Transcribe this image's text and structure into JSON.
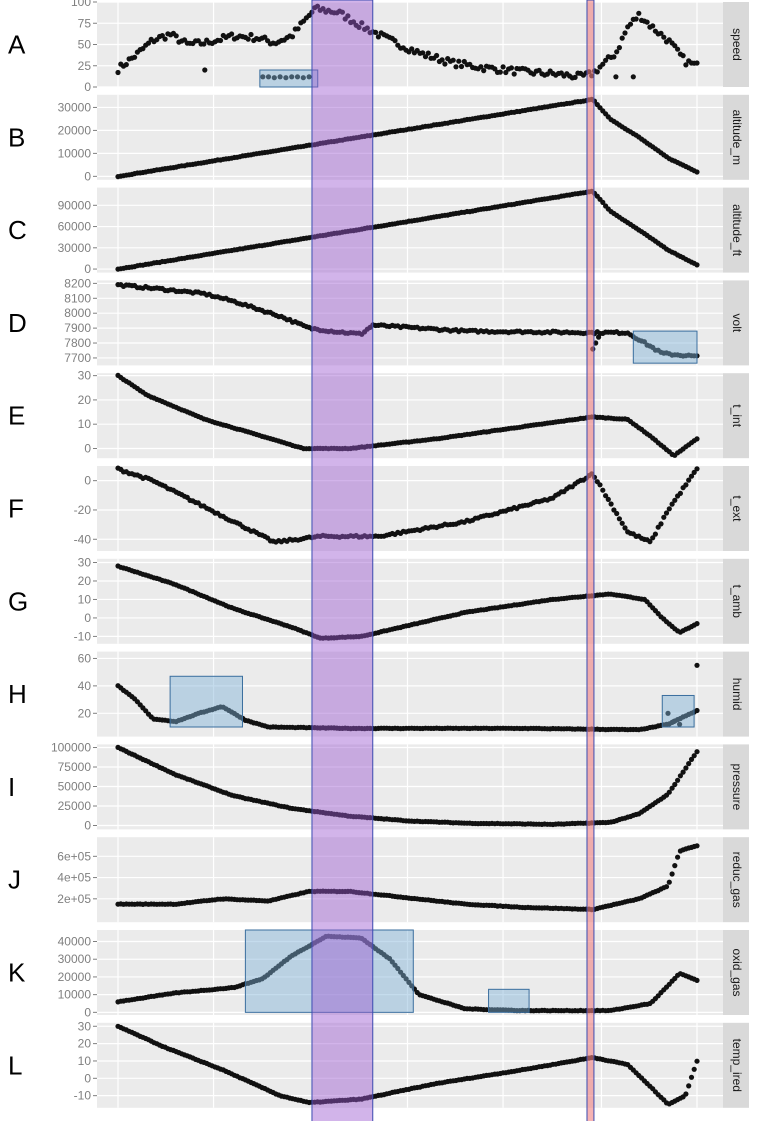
{
  "chart_data": {
    "type": "scatter",
    "x_ticks_visible": false,
    "grid": true,
    "theme": {
      "panel_bg": "#ebebeb",
      "strip_bg": "#d9d9d9",
      "point_color": "#111111"
    },
    "highlights": [
      {
        "kind": "band",
        "x_range": [
          0.335,
          0.44
        ],
        "color": "#9b59d0"
      },
      {
        "kind": "line",
        "x_range": [
          0.81,
          0.822
        ],
        "color": "#f08080"
      }
    ],
    "panels": [
      {
        "letter": "A",
        "strip": "speed",
        "ylim": [
          0,
          100
        ],
        "yticks": [
          0,
          25,
          50,
          75,
          100
        ],
        "ytick_labels": [
          "0",
          "25",
          "50",
          "75",
          "100"
        ],
        "y_keys": [
          [
            0.0,
            21
          ],
          [
            0.03,
            37
          ],
          [
            0.06,
            55
          ],
          [
            0.09,
            62
          ],
          [
            0.12,
            50
          ],
          [
            0.15,
            52
          ],
          [
            0.2,
            60
          ],
          [
            0.24,
            58
          ],
          [
            0.27,
            52
          ],
          [
            0.3,
            60
          ],
          [
            0.34,
            92
          ],
          [
            0.38,
            88
          ],
          [
            0.42,
            72
          ],
          [
            0.47,
            55
          ],
          [
            0.52,
            40
          ],
          [
            0.58,
            28
          ],
          [
            0.64,
            22
          ],
          [
            0.7,
            18
          ],
          [
            0.76,
            15
          ],
          [
            0.8,
            12
          ],
          [
            0.82,
            16
          ],
          [
            0.86,
            40
          ],
          [
            0.88,
            70
          ],
          [
            0.9,
            85
          ],
          [
            0.92,
            72
          ],
          [
            0.95,
            55
          ],
          [
            0.98,
            30
          ],
          [
            1.0,
            25
          ]
        ],
        "extra_points": [
          [
            0.25,
            12
          ],
          [
            0.26,
            12
          ],
          [
            0.27,
            11
          ],
          [
            0.28,
            12
          ],
          [
            0.29,
            11
          ],
          [
            0.3,
            12
          ],
          [
            0.31,
            12
          ],
          [
            0.32,
            11
          ],
          [
            0.33,
            12
          ],
          [
            0.15,
            20
          ],
          [
            0.86,
            12
          ],
          [
            0.89,
            12
          ]
        ],
        "boxes": [
          [
            0.245,
            0.345,
            0,
            20
          ]
        ]
      },
      {
        "letter": "B",
        "strip": "altitude_m",
        "ylim": [
          -1500,
          35500
        ],
        "yticks": [
          0,
          10000,
          20000,
          30000
        ],
        "ytick_labels": [
          "0",
          "10000",
          "20000",
          "30000"
        ],
        "y_keys": [
          [
            0.0,
            0
          ],
          [
            0.82,
            33500
          ],
          [
            0.85,
            25000
          ],
          [
            0.9,
            17000
          ],
          [
            0.95,
            8000
          ],
          [
            1.0,
            2000
          ]
        ],
        "boxes": []
      },
      {
        "letter": "C",
        "strip": "altitude_ft",
        "ylim": [
          -5000,
          115000
        ],
        "yticks": [
          0,
          30000,
          60000,
          90000
        ],
        "ytick_labels": [
          "0",
          "30000",
          "60000",
          "90000"
        ],
        "y_keys": [
          [
            0.0,
            0
          ],
          [
            0.82,
            110000
          ],
          [
            0.85,
            82000
          ],
          [
            0.9,
            55000
          ],
          [
            0.95,
            27000
          ],
          [
            1.0,
            6000
          ]
        ],
        "boxes": []
      },
      {
        "letter": "D",
        "strip": "volt",
        "ylim": [
          7650,
          8220
        ],
        "yticks": [
          7700,
          7800,
          7900,
          8000,
          8100,
          8200
        ],
        "ytick_labels": [
          "7700",
          "7800",
          "7900",
          "8000",
          "8100",
          "8200"
        ],
        "y_keys": [
          [
            0.0,
            8190
          ],
          [
            0.08,
            8160
          ],
          [
            0.15,
            8130
          ],
          [
            0.2,
            8080
          ],
          [
            0.28,
            7980
          ],
          [
            0.33,
            7900
          ],
          [
            0.38,
            7875
          ],
          [
            0.42,
            7860
          ],
          [
            0.44,
            7920
          ],
          [
            0.6,
            7880
          ],
          [
            0.82,
            7870
          ],
          [
            0.88,
            7870
          ],
          [
            0.91,
            7800
          ],
          [
            0.94,
            7730
          ],
          [
            1.0,
            7710
          ]
        ],
        "extra_points": [
          [
            0.82,
            7760
          ],
          [
            0.825,
            7800
          ],
          [
            0.83,
            7840
          ]
        ],
        "boxes": [
          [
            0.89,
            1.0,
            7665,
            7880
          ]
        ]
      },
      {
        "letter": "E",
        "strip": "t_int",
        "ylim": [
          -4,
          31
        ],
        "yticks": [
          0,
          10,
          20,
          30
        ],
        "ytick_labels": [
          "0",
          "10",
          "20",
          "30"
        ],
        "y_keys": [
          [
            0.0,
            30
          ],
          [
            0.05,
            22
          ],
          [
            0.15,
            12
          ],
          [
            0.25,
            5
          ],
          [
            0.32,
            0
          ],
          [
            0.4,
            0
          ],
          [
            0.55,
            4
          ],
          [
            0.7,
            9
          ],
          [
            0.82,
            13
          ],
          [
            0.88,
            12
          ],
          [
            0.92,
            5
          ],
          [
            0.96,
            -3
          ],
          [
            1.0,
            4
          ]
        ],
        "boxes": []
      },
      {
        "letter": "F",
        "strip": "t_ext",
        "ylim": [
          -48,
          10
        ],
        "yticks": [
          -40,
          -20,
          0
        ],
        "ytick_labels": [
          "-40",
          "-20",
          "0"
        ],
        "y_keys": [
          [
            0.0,
            8
          ],
          [
            0.06,
            0
          ],
          [
            0.15,
            -18
          ],
          [
            0.22,
            -32
          ],
          [
            0.27,
            -42
          ],
          [
            0.35,
            -38
          ],
          [
            0.45,
            -38
          ],
          [
            0.6,
            -28
          ],
          [
            0.75,
            -12
          ],
          [
            0.82,
            5
          ],
          [
            0.85,
            -15
          ],
          [
            0.88,
            -35
          ],
          [
            0.92,
            -42
          ],
          [
            0.95,
            -20
          ],
          [
            1.0,
            8
          ]
        ],
        "boxes": []
      },
      {
        "letter": "G",
        "strip": "t_amb",
        "ylim": [
          -14,
          32
        ],
        "yticks": [
          -10,
          0,
          10,
          20,
          30
        ],
        "ytick_labels": [
          "-10",
          "0",
          "10",
          "20",
          "30"
        ],
        "y_keys": [
          [
            0.0,
            28
          ],
          [
            0.1,
            18
          ],
          [
            0.2,
            5
          ],
          [
            0.3,
            -5
          ],
          [
            0.35,
            -11
          ],
          [
            0.42,
            -10
          ],
          [
            0.6,
            3
          ],
          [
            0.75,
            10
          ],
          [
            0.85,
            13
          ],
          [
            0.91,
            10
          ],
          [
            0.94,
            0
          ],
          [
            0.97,
            -8
          ],
          [
            1.0,
            -3
          ]
        ],
        "boxes": []
      },
      {
        "letter": "H",
        "strip": "humid",
        "ylim": [
          3,
          65
        ],
        "yticks": [
          20,
          40,
          60
        ],
        "ytick_labels": [
          "20",
          "40",
          "60"
        ],
        "y_keys": [
          [
            0.0,
            40
          ],
          [
            0.03,
            30
          ],
          [
            0.06,
            16
          ],
          [
            0.1,
            14
          ],
          [
            0.14,
            20
          ],
          [
            0.18,
            25
          ],
          [
            0.22,
            15
          ],
          [
            0.26,
            10
          ],
          [
            0.4,
            9
          ],
          [
            0.7,
            9
          ],
          [
            0.9,
            8
          ],
          [
            0.95,
            12
          ],
          [
            1.0,
            22
          ]
        ],
        "extra_points": [
          [
            0.95,
            20
          ],
          [
            0.96,
            14
          ],
          [
            0.97,
            12
          ],
          [
            1.0,
            55
          ]
        ],
        "boxes": [
          [
            0.09,
            0.215,
            10,
            47
          ],
          [
            0.94,
            0.995,
            10,
            33
          ]
        ]
      },
      {
        "letter": "I",
        "strip": "pressure",
        "ylim": [
          -5000,
          104000
        ],
        "yticks": [
          0,
          25000,
          50000,
          75000,
          100000
        ],
        "ytick_labels": [
          "0",
          "25000",
          "50000",
          "75000",
          "100000"
        ],
        "y_keys": [
          [
            0.0,
            100000
          ],
          [
            0.1,
            65000
          ],
          [
            0.2,
            38000
          ],
          [
            0.3,
            22000
          ],
          [
            0.4,
            12000
          ],
          [
            0.5,
            6000
          ],
          [
            0.6,
            3000
          ],
          [
            0.75,
            1500
          ],
          [
            0.85,
            4000
          ],
          [
            0.9,
            15000
          ],
          [
            0.95,
            40000
          ],
          [
            1.0,
            95000
          ]
        ],
        "boxes": []
      },
      {
        "letter": "J",
        "strip": "reduc_gas",
        "ylim": [
          -20000,
          780000
        ],
        "yticks": [
          200000,
          400000,
          600000
        ],
        "ytick_labels": [
          "2e+05",
          "4e+05",
          "6e+05"
        ],
        "y_keys": [
          [
            0.0,
            150000
          ],
          [
            0.1,
            150000
          ],
          [
            0.18,
            200000
          ],
          [
            0.26,
            180000
          ],
          [
            0.33,
            270000
          ],
          [
            0.4,
            270000
          ],
          [
            0.5,
            210000
          ],
          [
            0.6,
            150000
          ],
          [
            0.7,
            120000
          ],
          [
            0.82,
            100000
          ],
          [
            0.9,
            200000
          ],
          [
            0.95,
            320000
          ],
          [
            0.97,
            650000
          ],
          [
            1.0,
            700000
          ]
        ],
        "boxes": []
      },
      {
        "letter": "K",
        "strip": "oxid_gas",
        "ylim": [
          -1500,
          46500
        ],
        "yticks": [
          0,
          10000,
          20000,
          30000,
          40000
        ],
        "ytick_labels": [
          "0",
          "10000",
          "20000",
          "30000",
          "40000"
        ],
        "y_keys": [
          [
            0.0,
            6000
          ],
          [
            0.1,
            11000
          ],
          [
            0.2,
            14000
          ],
          [
            0.25,
            19000
          ],
          [
            0.3,
            32000
          ],
          [
            0.36,
            43000
          ],
          [
            0.42,
            42000
          ],
          [
            0.47,
            30000
          ],
          [
            0.52,
            10000
          ],
          [
            0.6,
            2000
          ],
          [
            0.7,
            1000
          ],
          [
            0.85,
            1000
          ],
          [
            0.92,
            5000
          ],
          [
            0.97,
            22000
          ],
          [
            1.0,
            18000
          ]
        ],
        "boxes": [
          [
            0.22,
            0.51,
            0,
            48000
          ],
          [
            0.64,
            0.71,
            0,
            13000
          ]
        ]
      },
      {
        "letter": "L",
        "strip": "temp_ired",
        "ylim": [
          -17,
          32
        ],
        "yticks": [
          -10,
          0,
          10,
          20,
          30
        ],
        "ytick_labels": [
          "-10",
          "0",
          "10",
          "20",
          "30"
        ],
        "y_keys": [
          [
            0.0,
            30
          ],
          [
            0.08,
            18
          ],
          [
            0.18,
            5
          ],
          [
            0.28,
            -10
          ],
          [
            0.33,
            -14
          ],
          [
            0.42,
            -12
          ],
          [
            0.55,
            -3
          ],
          [
            0.7,
            5
          ],
          [
            0.82,
            12
          ],
          [
            0.88,
            8
          ],
          [
            0.92,
            -5
          ],
          [
            0.95,
            -15
          ],
          [
            0.98,
            -10
          ],
          [
            1.0,
            10
          ]
        ],
        "boxes": []
      }
    ]
  }
}
